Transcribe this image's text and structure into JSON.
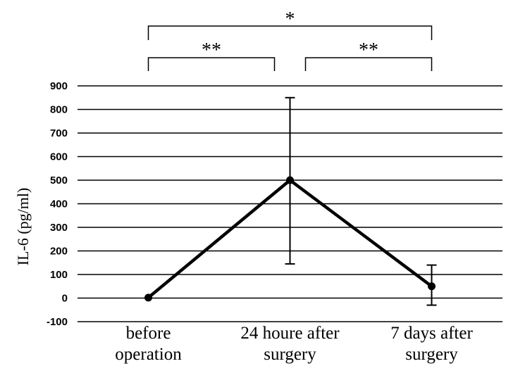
{
  "chart_data": {
    "type": "line",
    "title": "",
    "xlabel": "",
    "ylabel": "IL-6 (pg/ml)",
    "ylim": [
      -100,
      900
    ],
    "yticks": [
      -100,
      0,
      100,
      200,
      300,
      400,
      500,
      600,
      700,
      800,
      900
    ],
    "grid": true,
    "categories": [
      [
        "before",
        "operation"
      ],
      [
        "24 houre after",
        "surgery"
      ],
      [
        "7 days after",
        "surgery"
      ]
    ],
    "series": [
      {
        "values": [
          2,
          500,
          50
        ],
        "error_upper": [
          null,
          850,
          140
        ],
        "error_lower": [
          null,
          145,
          -30
        ]
      }
    ],
    "significance": [
      {
        "from": 0,
        "to": 2,
        "label": "*"
      },
      {
        "from": 0,
        "to": 1,
        "label": "**"
      },
      {
        "from": 1,
        "to": 2,
        "label": "**"
      }
    ],
    "colors": {
      "line": "#000000",
      "grid": "#000000"
    }
  }
}
